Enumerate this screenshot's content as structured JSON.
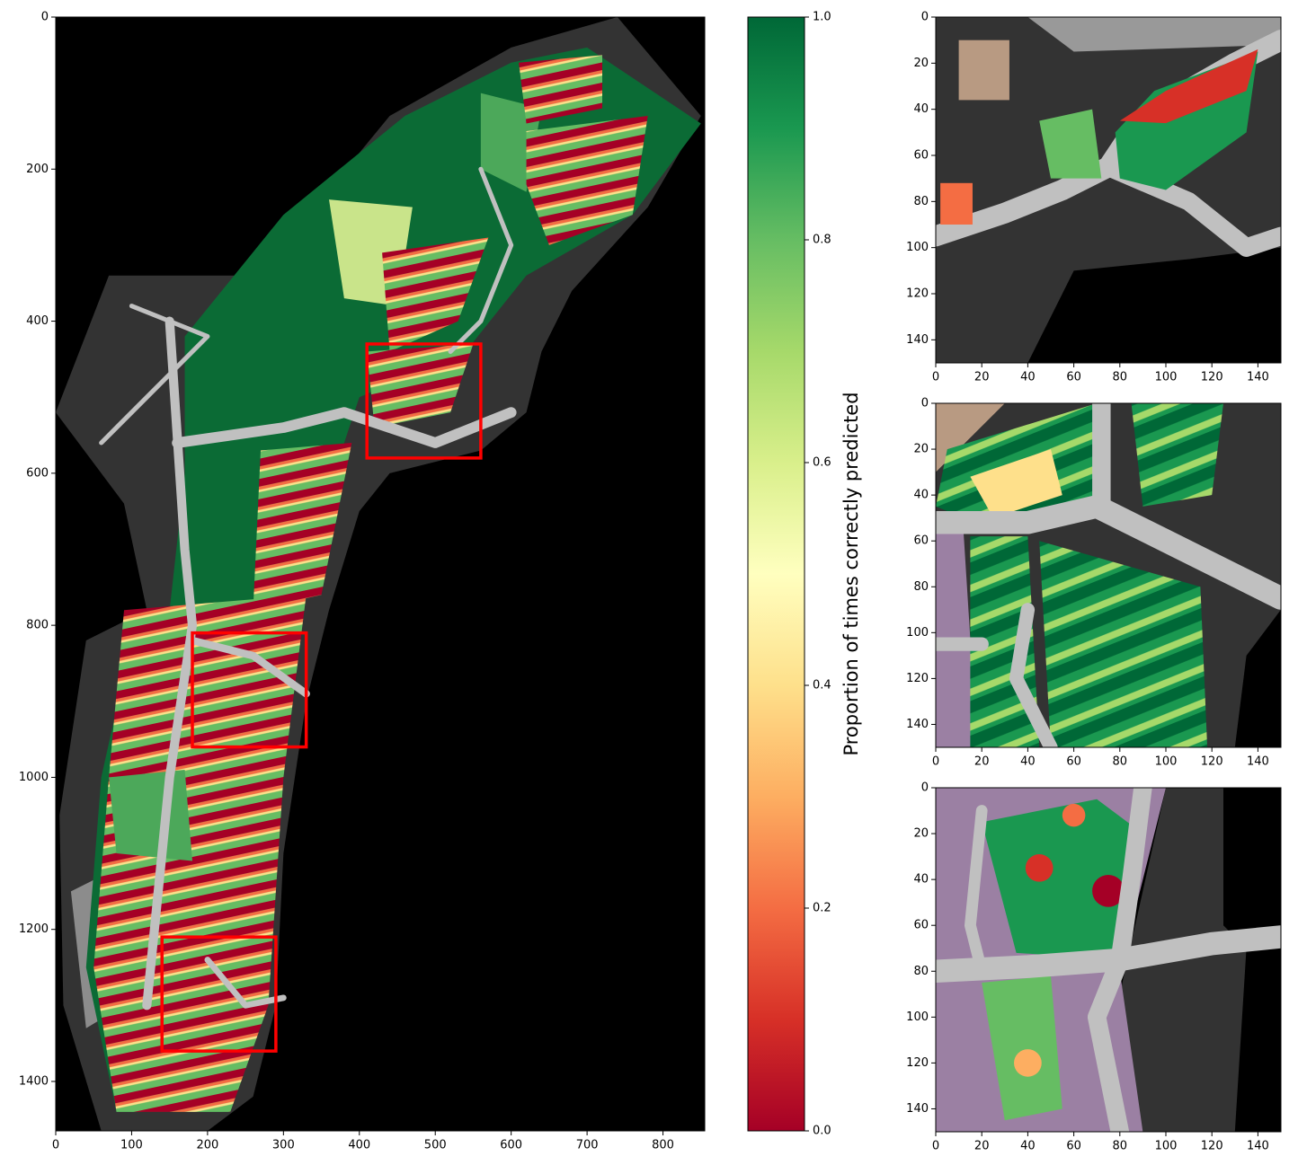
{
  "chart_data": [
    {
      "type": "image",
      "xlim": [
        0,
        855
      ],
      "ylim": [
        1465,
        0
      ],
      "xticks": [
        0,
        100,
        200,
        300,
        400,
        500,
        600,
        700,
        800
      ],
      "yticks": [
        0,
        200,
        400,
        600,
        800,
        1000,
        1200,
        1400
      ],
      "boxes": [
        {
          "x": [
            410,
            560
          ],
          "y": [
            430,
            580
          ]
        },
        {
          "x": [
            180,
            330
          ],
          "y": [
            810,
            960
          ]
        },
        {
          "x": [
            140,
            290
          ],
          "y": [
            1210,
            1360
          ]
        }
      ],
      "box_color": "#ff0000"
    },
    {
      "type": "colorbar",
      "label": "Proportion of times correctly predicted",
      "ylim": [
        0,
        1
      ],
      "yticks": [
        {
          "value": 0,
          "label": "0.0"
        },
        {
          "value": 0.2,
          "label": "0.2"
        },
        {
          "value": 0.4,
          "label": "0.4"
        },
        {
          "value": 0.6,
          "label": "0.6"
        },
        {
          "value": 0.8,
          "label": "0.8"
        },
        {
          "value": 1,
          "label": "1.0"
        }
      ],
      "colormap": [
        "#a50026",
        "#d73027",
        "#f46d43",
        "#fdae61",
        "#fee08b",
        "#ffffbf",
        "#d9ef8b",
        "#a6d96a",
        "#66bd63",
        "#1a9850",
        "#006837"
      ]
    },
    {
      "type": "image",
      "xlim": [
        0,
        150
      ],
      "ylim": [
        150,
        0
      ],
      "xticks": [
        0,
        20,
        40,
        60,
        80,
        100,
        120,
        140
      ],
      "yticks": [
        0,
        20,
        40,
        60,
        80,
        100,
        120,
        140
      ]
    },
    {
      "type": "image",
      "xlim": [
        0,
        150
      ],
      "ylim": [
        150,
        0
      ],
      "xticks": [
        0,
        20,
        40,
        60,
        80,
        100,
        120,
        140
      ],
      "yticks": [
        0,
        20,
        40,
        60,
        80,
        100,
        120,
        140
      ]
    },
    {
      "type": "image",
      "xlim": [
        0,
        150
      ],
      "ylim": [
        150,
        0
      ],
      "xticks": [
        0,
        20,
        40,
        60,
        80,
        100,
        120,
        140
      ],
      "yticks": [
        0,
        20,
        40,
        60,
        80,
        100,
        120,
        140
      ]
    }
  ]
}
